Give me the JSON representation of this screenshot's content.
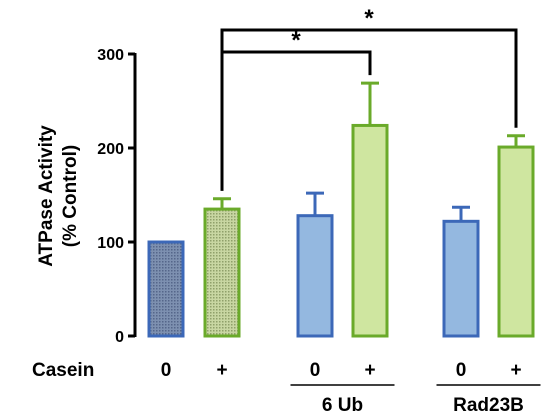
{
  "chart_data": {
    "type": "bar",
    "ylabel_lines": [
      "ATPase Activity",
      "(% Control)"
    ],
    "ylim": [
      0,
      300
    ],
    "yticks": [
      "0",
      "100",
      "200",
      "300"
    ],
    "row_label": "Casein",
    "groups": [
      {
        "name": "",
        "bars": [
          {
            "casein": "0",
            "value": 100,
            "error": 0,
            "fill": "#6a7d9e",
            "stroke": "#3c68b8",
            "pattern": "dots"
          },
          {
            "casein": "+",
            "value": 135,
            "error": 11,
            "fill": "#b7c98a",
            "stroke": "#6aaa2a",
            "pattern": "dots"
          }
        ]
      },
      {
        "name": "6 Ub",
        "bars": [
          {
            "casein": "0",
            "value": 128,
            "error": 24,
            "fill": "#94b8e0",
            "stroke": "#3c68b8",
            "pattern": "none"
          },
          {
            "casein": "+",
            "value": 224,
            "error": 45,
            "fill": "#cfe6a0",
            "stroke": "#6aaa2a",
            "pattern": "none"
          }
        ]
      },
      {
        "name": "Rad23B",
        "bars": [
          {
            "casein": "0",
            "value": 122,
            "error": 15,
            "fill": "#94b8e0",
            "stroke": "#3c68b8",
            "pattern": "none"
          },
          {
            "casein": "+",
            "value": 201,
            "error": 12,
            "fill": "#cfe6a0",
            "stroke": "#6aaa2a",
            "pattern": "none"
          }
        ]
      }
    ],
    "significance": [
      {
        "from": [
          0,
          1
        ],
        "to": [
          1,
          1
        ],
        "label": "*"
      },
      {
        "from": [
          0,
          1
        ],
        "to": [
          2,
          1
        ],
        "label": "*"
      }
    ]
  }
}
